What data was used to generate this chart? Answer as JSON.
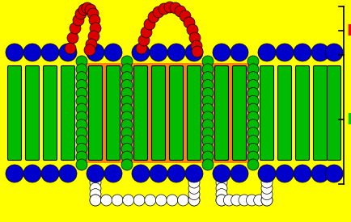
{
  "bg_color": "#FFFF00",
  "helix_color": "#00BB00",
  "helix_border": "#000000",
  "blue_color": "#0000CC",
  "red_color": "#DD0000",
  "green_color": "#00BB00",
  "white_color": "#FFFFFF",
  "orange_color": "#FF8800",
  "fig_width": 4.35,
  "fig_height": 2.75,
  "E_label": "E",
  "P_label": "P",
  "E_color": "#FF0000",
  "P_color": "#00CC00"
}
